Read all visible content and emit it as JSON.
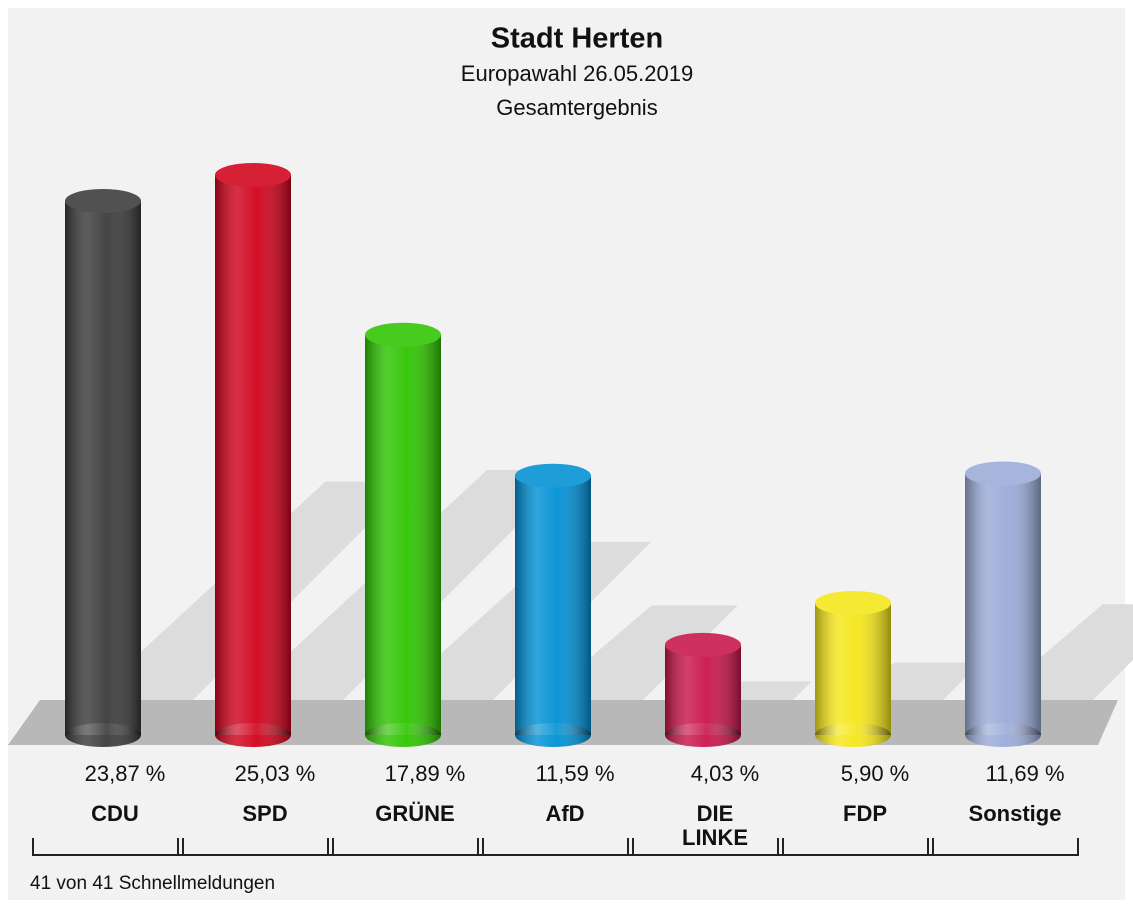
{
  "chart_data": {
    "type": "bar",
    "title": "Stadt Herten",
    "subtitle": [
      "Europawahl 26.05.2019",
      "Gesamtergebnis"
    ],
    "categories": [
      "CDU",
      "SPD",
      "GRÜNE",
      "AfD",
      "DIE LINKE",
      "FDP",
      "Sonstige"
    ],
    "values": [
      23.87,
      25.03,
      17.89,
      11.59,
      4.03,
      5.9,
      11.69
    ],
    "value_labels": [
      "23,87 %",
      "25,03 %",
      "17,89 %",
      "11,59 %",
      "4,03 %",
      "5,90 %",
      "11,69 %"
    ],
    "colors": [
      "#3a3a3a",
      "#d0021b",
      "#2ec400",
      "#0090d4",
      "#c8154a",
      "#f5e619",
      "#9aabd8"
    ],
    "footnote": "41 von 41 Schnellmeldungen"
  }
}
